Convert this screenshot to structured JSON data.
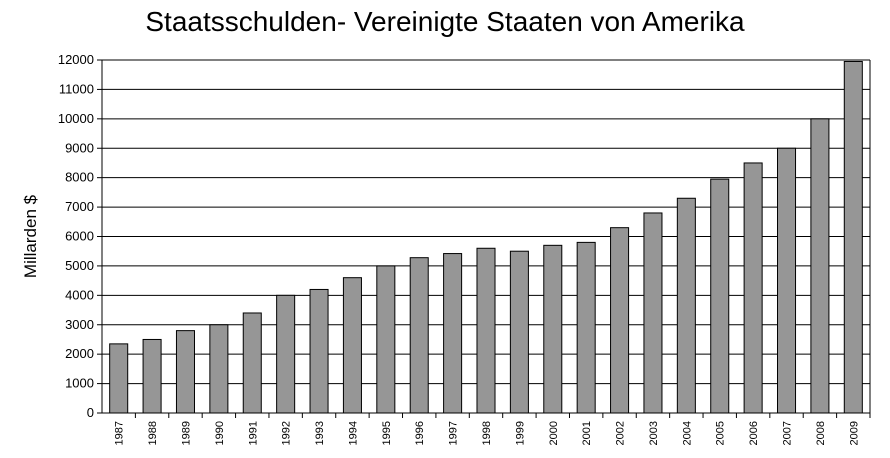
{
  "chart_data": {
    "type": "bar",
    "title": "Staatsschulden- Vereinigte Staaten von Amerika",
    "xlabel": "",
    "ylabel": "Millarden $",
    "ylim": [
      0,
      12000
    ],
    "ytick_step": 1000,
    "grid": true,
    "legend": "none",
    "bar_color": "#969696",
    "categories": [
      "1987",
      "1988",
      "1989",
      "1990",
      "1991",
      "1992",
      "1993",
      "1994",
      "1995",
      "1996",
      "1997",
      "1998",
      "1999",
      "2000",
      "2001",
      "2002",
      "2003",
      "2004",
      "2005",
      "2006",
      "2007",
      "2008",
      "2009"
    ],
    "values": [
      2350,
      2500,
      2800,
      3000,
      3400,
      4000,
      4200,
      4600,
      5000,
      5280,
      5420,
      5600,
      5500,
      5700,
      5800,
      6300,
      6800,
      7300,
      7950,
      8500,
      9000,
      10000,
      11950
    ]
  }
}
